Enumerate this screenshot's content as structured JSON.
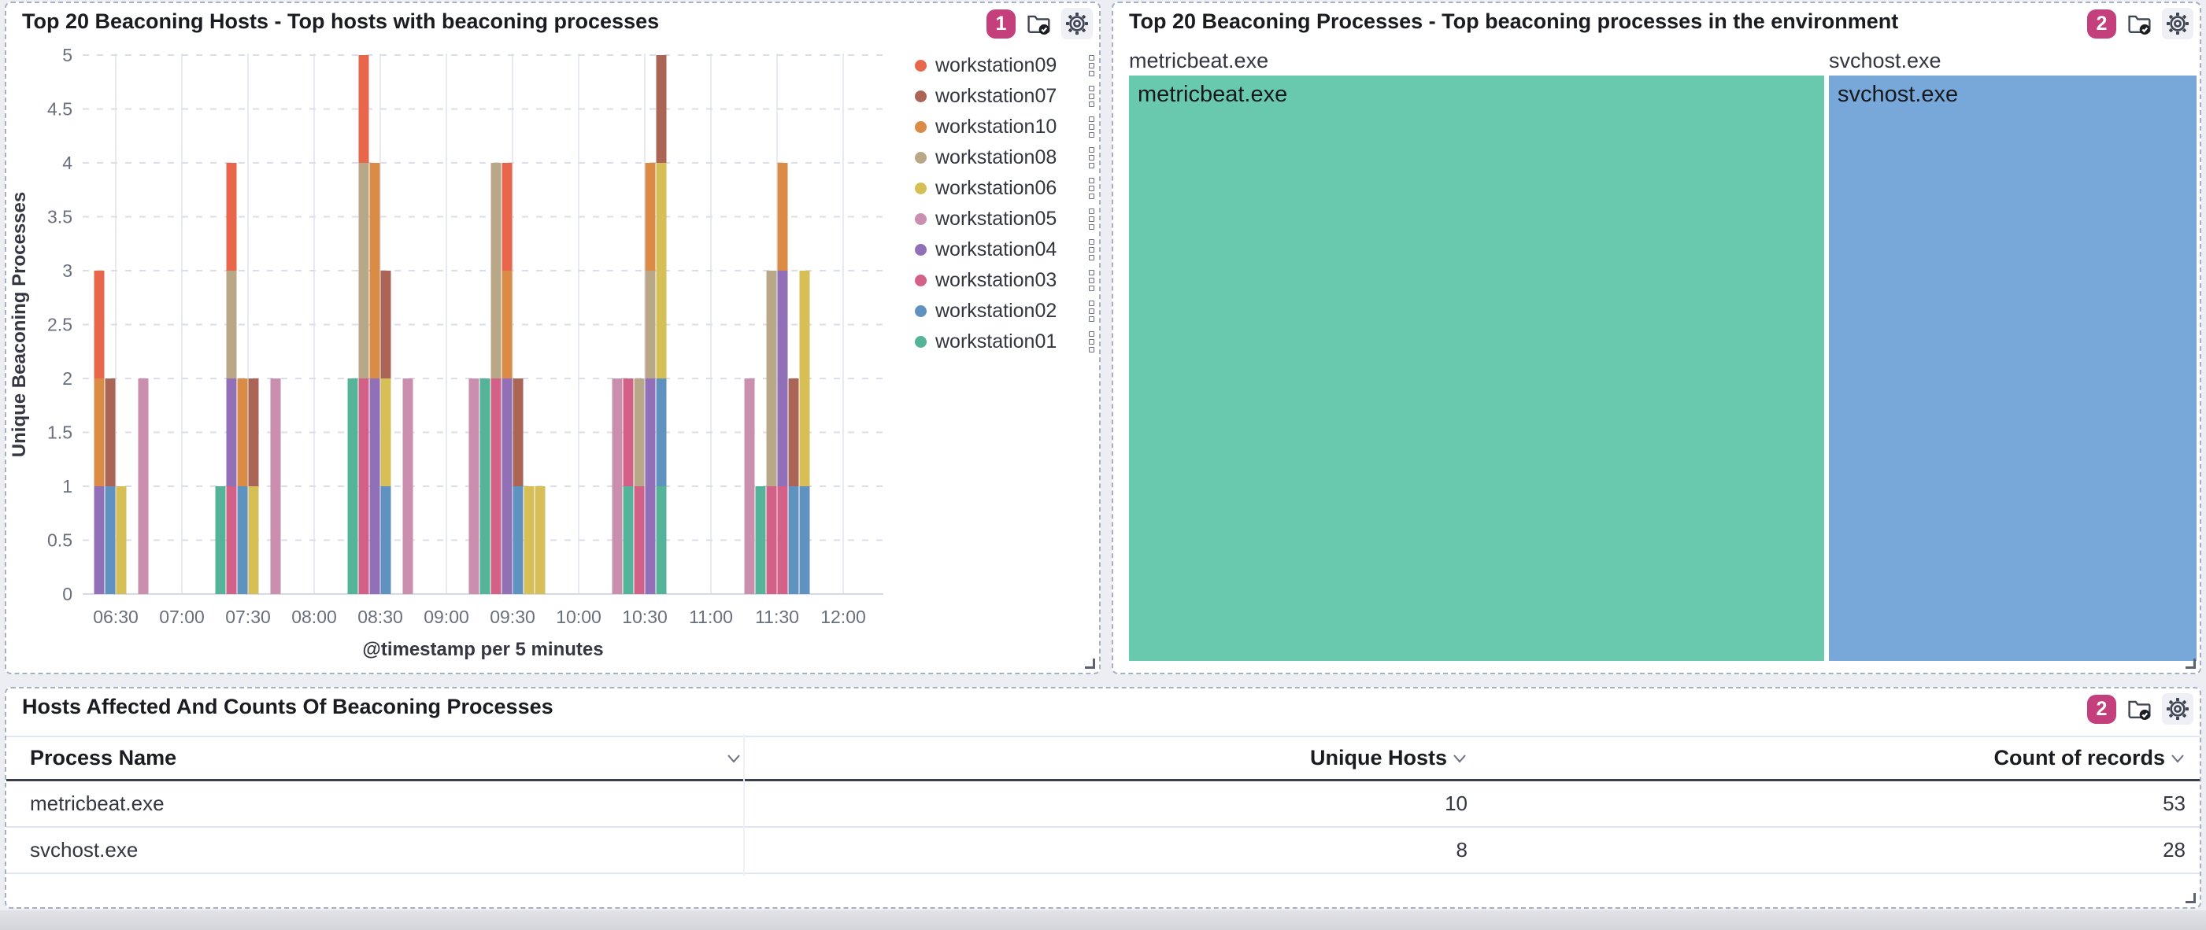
{
  "hosts_panel": {
    "title": "Top 20 Beaconing Hosts - Top hosts with beaconing processes",
    "badge": "1"
  },
  "processes_panel": {
    "title": "Top 20 Beaconing Processes - Top beaconing processes in the environment",
    "badge": "2"
  },
  "table_panel": {
    "title": "Hosts Affected And Counts Of Beaconing Processes",
    "badge": "2",
    "columns": [
      "Process Name",
      "Unique Hosts",
      "Count of records"
    ],
    "rows": [
      {
        "process": "metricbeat.exe",
        "unique_hosts": "10",
        "count": "53"
      },
      {
        "process": "svchost.exe",
        "unique_hosts": "8",
        "count": "28"
      }
    ]
  },
  "colors": {
    "badge_bg": "#c4407c",
    "panel_border_dashed": "#a6b0c3",
    "grid_vertical": "#e7eaf2",
    "grid_dashed": "#d9dee9",
    "axis_text": "#69707d",
    "axis_title_text": "#343741"
  },
  "chart_data": [
    {
      "type": "bar",
      "stacked": true,
      "title": "Top 20 Beaconing Hosts - Top hosts with beaconing processes",
      "xlabel": "@timestamp per 5 minutes",
      "ylabel": "Unique Beaconing Processes",
      "ylim": [
        0,
        5
      ],
      "y_ticks": [
        "0",
        "0.5",
        "1",
        "1.5",
        "2",
        "2.5",
        "3",
        "3.5",
        "4",
        "4.5",
        "5"
      ],
      "x_ticks": [
        "06:30",
        "07:00",
        "07:30",
        "08:00",
        "08:30",
        "09:00",
        "09:30",
        "10:00",
        "10:30",
        "11:00",
        "11:30",
        "12:00"
      ],
      "legend_position": "right",
      "legend": [
        {
          "name": "workstation09",
          "color": "#E7664C"
        },
        {
          "name": "workstation07",
          "color": "#AA6556"
        },
        {
          "name": "workstation10",
          "color": "#DA8B45"
        },
        {
          "name": "workstation08",
          "color": "#B9A888"
        },
        {
          "name": "workstation06",
          "color": "#D6BF57"
        },
        {
          "name": "workstation05",
          "color": "#CA8EAE"
        },
        {
          "name": "workstation04",
          "color": "#9170B8"
        },
        {
          "name": "workstation03",
          "color": "#D36086"
        },
        {
          "name": "workstation02",
          "color": "#6092C0"
        },
        {
          "name": "workstation01",
          "color": "#54B399"
        }
      ],
      "stack_order_bottom_to_top": [
        "workstation01",
        "workstation02",
        "workstation03",
        "workstation04",
        "workstation05",
        "workstation06",
        "workstation08",
        "workstation10",
        "workstation07",
        "workstation09"
      ],
      "bars": [
        {
          "time": "06:20",
          "segments": {
            "workstation04": 1,
            "workstation10": 1,
            "workstation09": 1
          }
        },
        {
          "time": "06:25",
          "segments": {
            "workstation02": 1,
            "workstation07": 1
          }
        },
        {
          "time": "06:30",
          "segments": {
            "workstation06": 1
          }
        },
        {
          "time": "06:40",
          "segments": {
            "workstation05": 2
          }
        },
        {
          "time": "07:15",
          "segments": {
            "workstation01": 1
          }
        },
        {
          "time": "07:20",
          "segments": {
            "workstation03": 1,
            "workstation04": 1,
            "workstation08": 1,
            "workstation09": 1
          }
        },
        {
          "time": "07:25",
          "segments": {
            "workstation02": 1,
            "workstation10": 1
          }
        },
        {
          "time": "07:30",
          "segments": {
            "workstation06": 1,
            "workstation07": 1
          }
        },
        {
          "time": "07:40",
          "segments": {
            "workstation05": 2
          }
        },
        {
          "time": "08:15",
          "segments": {
            "workstation01": 2
          }
        },
        {
          "time": "08:20",
          "segments": {
            "workstation03": 2,
            "workstation08": 2,
            "workstation09": 1
          }
        },
        {
          "time": "08:25",
          "segments": {
            "workstation04": 2,
            "workstation10": 2
          }
        },
        {
          "time": "08:30",
          "segments": {
            "workstation02": 1,
            "workstation06": 1,
            "workstation07": 1
          }
        },
        {
          "time": "08:40",
          "segments": {
            "workstation05": 2
          }
        },
        {
          "time": "09:10",
          "segments": {
            "workstation05": 2
          }
        },
        {
          "time": "09:15",
          "segments": {
            "workstation01": 2
          }
        },
        {
          "time": "09:20",
          "segments": {
            "workstation03": 2,
            "workstation08": 2
          }
        },
        {
          "time": "09:25",
          "segments": {
            "workstation04": 2,
            "workstation10": 1,
            "workstation09": 1
          }
        },
        {
          "time": "09:30",
          "segments": {
            "workstation02": 1,
            "workstation07": 1
          }
        },
        {
          "time": "09:35",
          "segments": {
            "workstation06": 1
          }
        },
        {
          "time": "09:40",
          "segments": {
            "workstation06": 1
          }
        },
        {
          "time": "10:15",
          "segments": {
            "workstation05": 2
          }
        },
        {
          "time": "10:20",
          "segments": {
            "workstation01": 1,
            "workstation03": 1
          }
        },
        {
          "time": "10:25",
          "segments": {
            "workstation03": 1,
            "workstation08": 1
          }
        },
        {
          "time": "10:30",
          "segments": {
            "workstation04": 2,
            "workstation08": 1,
            "workstation10": 1
          }
        },
        {
          "time": "10:35",
          "segments": {
            "workstation01": 1,
            "workstation02": 1,
            "workstation06": 2,
            "workstation07": 1
          }
        },
        {
          "time": "11:15",
          "segments": {
            "workstation05": 2
          }
        },
        {
          "time": "11:20",
          "segments": {
            "workstation01": 1
          }
        },
        {
          "time": "11:25",
          "segments": {
            "workstation03": 1,
            "workstation08": 2
          }
        },
        {
          "time": "11:30",
          "segments": {
            "workstation03": 1,
            "workstation04": 2,
            "workstation10": 1
          }
        },
        {
          "time": "11:35",
          "segments": {
            "workstation02": 1,
            "workstation07": 1
          }
        },
        {
          "time": "11:40",
          "segments": {
            "workstation02": 1,
            "workstation06": 2
          }
        }
      ]
    },
    {
      "type": "treemap",
      "title": "Top 20 Beaconing Processes - Top beaconing processes in the environment",
      "slices": [
        {
          "label": "metricbeat.exe",
          "value": 53,
          "color": "#69c9ae"
        },
        {
          "label": "svchost.exe",
          "value": 28,
          "color": "#78a8da"
        }
      ]
    },
    {
      "type": "table",
      "title": "Hosts Affected And Counts Of Beaconing Processes",
      "columns": [
        "Process Name",
        "Unique Hosts",
        "Count of records"
      ],
      "rows": [
        [
          "metricbeat.exe",
          10,
          53
        ],
        [
          "svchost.exe",
          8,
          28
        ]
      ]
    }
  ]
}
